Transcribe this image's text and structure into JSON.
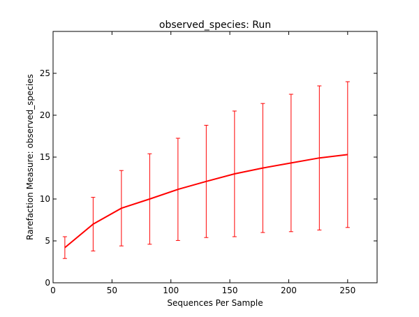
{
  "chart_data": {
    "type": "line",
    "title": "observed_species: Run",
    "xlabel": "Sequences Per Sample",
    "ylabel": "Rarefaction Measure: observed_species",
    "xlim": [
      0,
      275
    ],
    "ylim": [
      0,
      30
    ],
    "x_ticks": [
      0,
      50,
      100,
      150,
      200,
      250
    ],
    "y_ticks": [
      0,
      5,
      10,
      15,
      20,
      25
    ],
    "x_tick_labels": [
      "0",
      "50",
      "100",
      "150",
      "200",
      "250"
    ],
    "y_tick_labels": [
      "0",
      "5",
      "10",
      "15",
      "20",
      "25"
    ],
    "grid": false,
    "line_color": "#ff0000",
    "series": [
      {
        "x": [
          10,
          34,
          58,
          82,
          106,
          130,
          154,
          178,
          202,
          226,
          250
        ],
        "y": [
          4.2,
          7.0,
          8.9,
          10.0,
          11.15,
          12.1,
          13.0,
          13.7,
          14.3,
          14.9,
          15.3
        ],
        "error": [
          1.3,
          3.2,
          4.5,
          5.4,
          6.1,
          6.7,
          7.5,
          7.7,
          8.2,
          8.6,
          8.7
        ]
      }
    ]
  }
}
